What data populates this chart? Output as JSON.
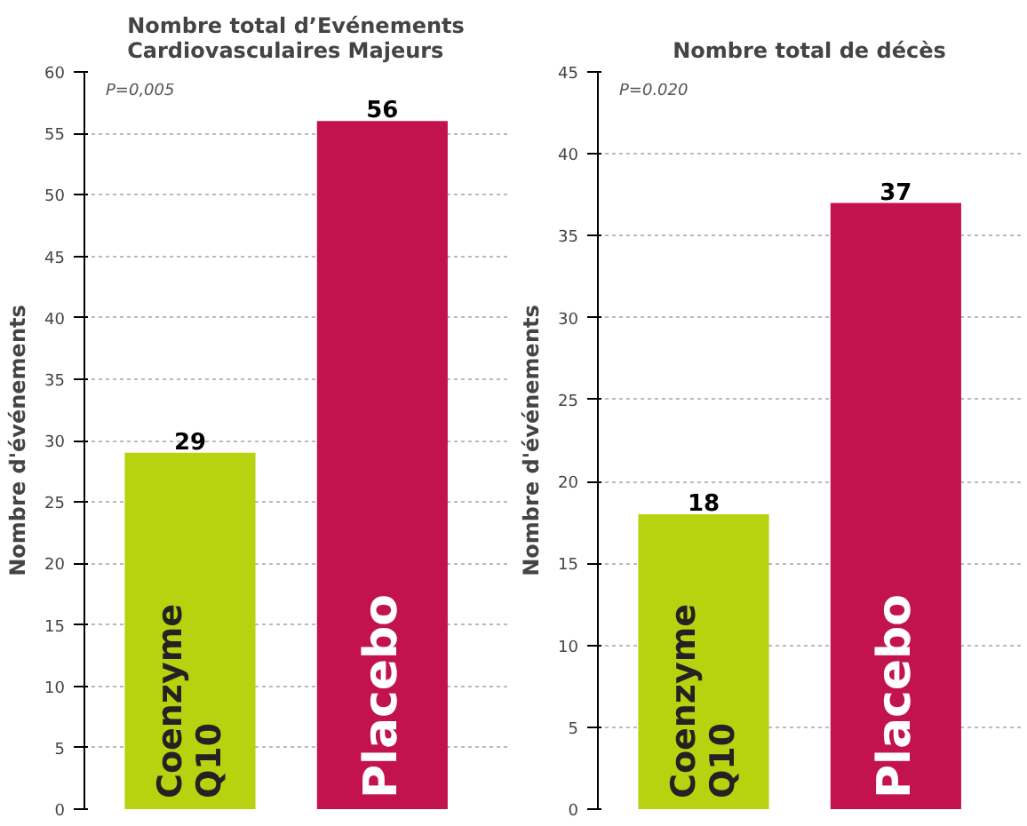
{
  "chart_data": [
    {
      "type": "bar",
      "title": "Nombre total d’Evénements\nCardiovasculaires Majeurs",
      "ylabel": "Nombre d'événements",
      "categories": [
        "Coenzyme\nQ10",
        "Placebo"
      ],
      "values": [
        29,
        56
      ],
      "colors": [
        "#b7d30f",
        "#c2134f"
      ],
      "ylim": [
        0,
        60
      ],
      "yticks": [
        0,
        5,
        10,
        15,
        20,
        25,
        30,
        35,
        40,
        45,
        50,
        55,
        60
      ],
      "grid": "y",
      "data_labels": true,
      "tick_labels": "y",
      "annotations": [
        "P=0,005"
      ]
    },
    {
      "type": "bar",
      "title": "Nombre total de décès",
      "ylabel": "Nombre d'événements",
      "categories": [
        "Coenzyme\nQ10",
        "Placebo"
      ],
      "values": [
        18,
        37
      ],
      "colors": [
        "#b7d30f",
        "#c2134f"
      ],
      "ylim": [
        0,
        45
      ],
      "yticks": [
        0,
        5,
        10,
        15,
        20,
        25,
        30,
        35,
        40,
        45
      ],
      "grid": "y",
      "data_labels": true,
      "tick_labels": "y",
      "annotations": [
        "P=0.020"
      ]
    }
  ]
}
